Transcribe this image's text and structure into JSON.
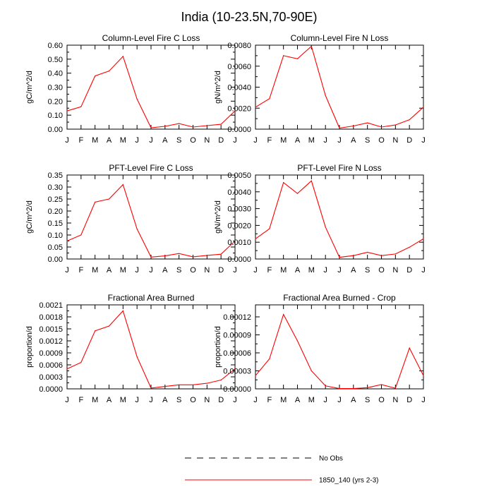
{
  "title": "India (10-23.5N,70-90E)",
  "colors": {
    "series": "#ff0000",
    "obs": "#000000"
  },
  "legend": {
    "placement": "bottom-right",
    "entries": [
      {
        "label": "No Obs",
        "style": "dashed",
        "color": "#000000"
      },
      {
        "label": "1850_140 (yrs 2-3)",
        "style": "solid",
        "color": "#ff0000"
      }
    ]
  },
  "chart_data": [
    {
      "type": "line",
      "title": "Column-Level Fire C Loss",
      "ylabel": "gC/m^2/d",
      "xlabel": "",
      "categories": [
        "J",
        "F",
        "M",
        "A",
        "M",
        "J",
        "J",
        "A",
        "S",
        "O",
        "N",
        "D",
        "J"
      ],
      "ylim": [
        0,
        0.6
      ],
      "yticks": [
        "0.00",
        "0.10",
        "0.20",
        "0.30",
        "0.40",
        "0.50",
        "0.60"
      ],
      "series": [
        {
          "name": "1850_140 (yrs 2-3)",
          "values": [
            0.13,
            0.16,
            0.38,
            0.415,
            0.52,
            0.215,
            0.01,
            0.02,
            0.04,
            0.015,
            0.025,
            0.035,
            0.13
          ]
        }
      ]
    },
    {
      "type": "line",
      "title": "Column-Level Fire N Loss",
      "ylabel": "gN/m^2/d",
      "xlabel": "",
      "categories": [
        "J",
        "F",
        "M",
        "A",
        "M",
        "J",
        "J",
        "A",
        "S",
        "O",
        "N",
        "D",
        "J"
      ],
      "ylim": [
        0,
        0.008
      ],
      "yticks": [
        "0.0000",
        "0.0020",
        "0.0040",
        "0.0060",
        "0.0080"
      ],
      "series": [
        {
          "name": "1850_140 (yrs 2-3)",
          "values": [
            0.0021,
            0.0029,
            0.007,
            0.0067,
            0.0079,
            0.0032,
            0.0001,
            0.0003,
            0.0006,
            0.0002,
            0.0004,
            0.0009,
            0.0021
          ]
        }
      ]
    },
    {
      "type": "line",
      "title": "PFT-Level Fire C Loss",
      "ylabel": "gC/m^2/d",
      "xlabel": "",
      "categories": [
        "J",
        "F",
        "M",
        "A",
        "M",
        "J",
        "J",
        "A",
        "S",
        "O",
        "N",
        "D",
        "J"
      ],
      "ylim": [
        0,
        0.35
      ],
      "yticks": [
        "0.00",
        "0.05",
        "0.10",
        "0.15",
        "0.20",
        "0.25",
        "0.30",
        "0.35"
      ],
      "series": [
        {
          "name": "1850_140 (yrs 2-3)",
          "values": [
            0.075,
            0.1,
            0.237,
            0.25,
            0.31,
            0.125,
            0.008,
            0.013,
            0.023,
            0.009,
            0.015,
            0.02,
            0.075
          ]
        }
      ]
    },
    {
      "type": "line",
      "title": "PFT-Level Fire N Loss",
      "ylabel": "gN/m^2/d",
      "xlabel": "",
      "categories": [
        "J",
        "F",
        "M",
        "A",
        "M",
        "J",
        "J",
        "A",
        "S",
        "O",
        "N",
        "D",
        "J"
      ],
      "ylim": [
        0,
        0.005
      ],
      "yticks": [
        "0.0000",
        "0.0010",
        "0.0020",
        "0.0030",
        "0.0040",
        "0.0050"
      ],
      "series": [
        {
          "name": "1850_140 (yrs 2-3)",
          "values": [
            0.0012,
            0.0018,
            0.00455,
            0.0039,
            0.00465,
            0.0019,
            0.0001,
            0.0002,
            0.0004,
            0.0002,
            0.0003,
            0.0007,
            0.0012
          ]
        }
      ]
    },
    {
      "type": "line",
      "title": "Fractional Area Burned",
      "ylabel": "proportion/d",
      "xlabel": "",
      "categories": [
        "J",
        "F",
        "M",
        "A",
        "M",
        "J",
        "J",
        "A",
        "S",
        "O",
        "N",
        "D",
        "J"
      ],
      "ylim": [
        0,
        0.0021
      ],
      "yticks": [
        "0.0000",
        "0.0003",
        "0.0006",
        "0.0009",
        "0.0012",
        "0.0015",
        "0.0018",
        "0.0021"
      ],
      "series": [
        {
          "name": "1850_140 (yrs 2-3)",
          "values": [
            0.0005,
            0.00066,
            0.00145,
            0.00157,
            0.00195,
            0.0008,
            2e-05,
            6e-05,
            0.0001,
            0.0001,
            0.00014,
            0.00022,
            0.0005
          ]
        }
      ]
    },
    {
      "type": "line",
      "title": "Fractional Area Burned - Crop",
      "ylabel": "proportion/d",
      "xlabel": "",
      "categories": [
        "J",
        "F",
        "M",
        "A",
        "M",
        "J",
        "J",
        "A",
        "S",
        "O",
        "N",
        "D",
        "J"
      ],
      "ylim": [
        0,
        0.00014
      ],
      "yticks": [
        "0.00000",
        "0.00003",
        "0.00006",
        "0.00009",
        "0.00012"
      ],
      "series": [
        {
          "name": "1850_140 (yrs 2-3)",
          "values": [
            2.2e-05,
            5e-05,
            0.000124,
            8e-05,
            3e-05,
            5e-06,
            5e-07,
            5e-07,
            2e-06,
            7e-06,
            1e-06,
            6.8e-05,
            2.2e-05
          ]
        }
      ]
    }
  ]
}
